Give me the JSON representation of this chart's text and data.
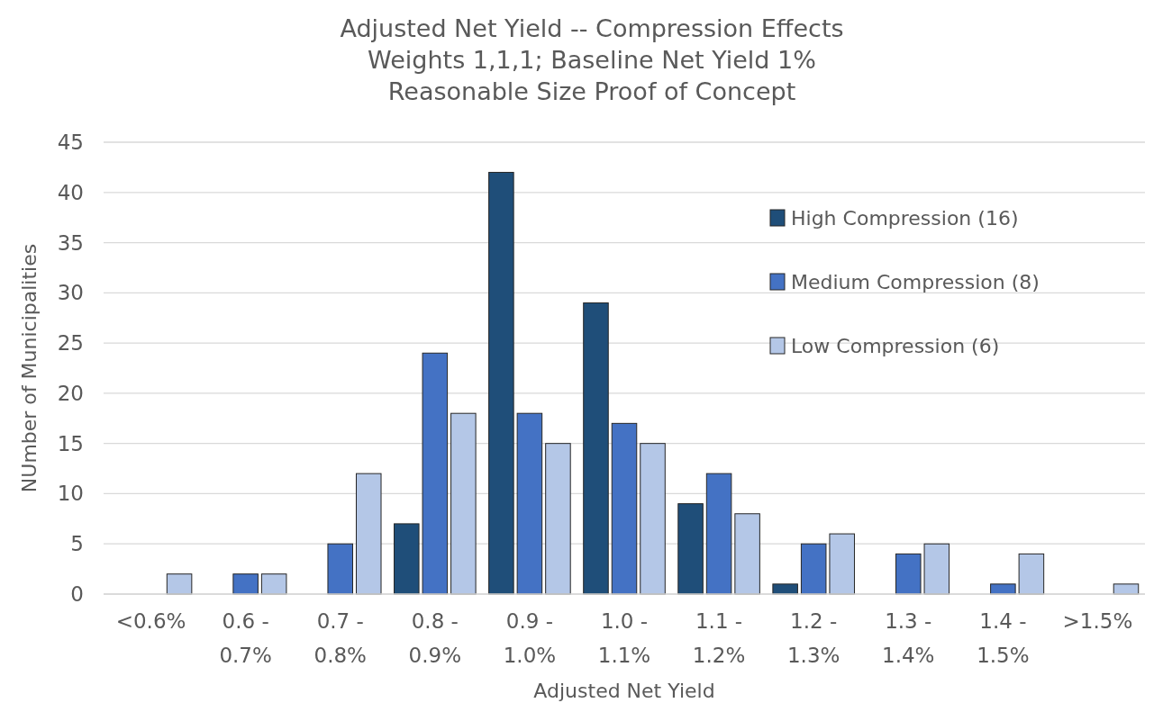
{
  "chart_data": {
    "type": "bar",
    "title": "Adjusted Net Yield -- Compression Effects",
    "subtitle": "Weights 1,1,1; Baseline Net Yield 1%\nReasonable Size Proof of Concept",
    "xlabel": "Adjusted Net Yield",
    "ylabel": "NUmber of Municipalities",
    "categories": [
      "<0.6%",
      "0.6 - 0.7%",
      "0.7 - 0.8%",
      "0.8 - 0.9%",
      "0.9 - 1.0%",
      "1.0 - 1.1%",
      "1.1 - 1.2%",
      "1.2 - 1.3%",
      "1.3 - 1.4%",
      "1.4 - 1.5%",
      ">1.5%"
    ],
    "series": [
      {
        "name": "High Compression (16)",
        "color": "#1f4e79",
        "values": [
          0,
          0,
          0,
          7,
          42,
          29,
          9,
          1,
          0,
          0,
          0
        ]
      },
      {
        "name": "Medium Compression (8)",
        "color": "#4472c4",
        "values": [
          0,
          2,
          5,
          24,
          18,
          17,
          12,
          5,
          4,
          1,
          0
        ]
      },
      {
        "name": "Low Compression (6)",
        "color": "#b4c7e7",
        "values": [
          2,
          2,
          12,
          18,
          15,
          15,
          8,
          6,
          5,
          4,
          1
        ]
      }
    ],
    "ylim": [
      0,
      45
    ],
    "yticks": [
      0,
      5,
      10,
      15,
      20,
      25,
      30,
      35,
      40,
      45
    ],
    "grid": "y",
    "legend": "top right"
  }
}
